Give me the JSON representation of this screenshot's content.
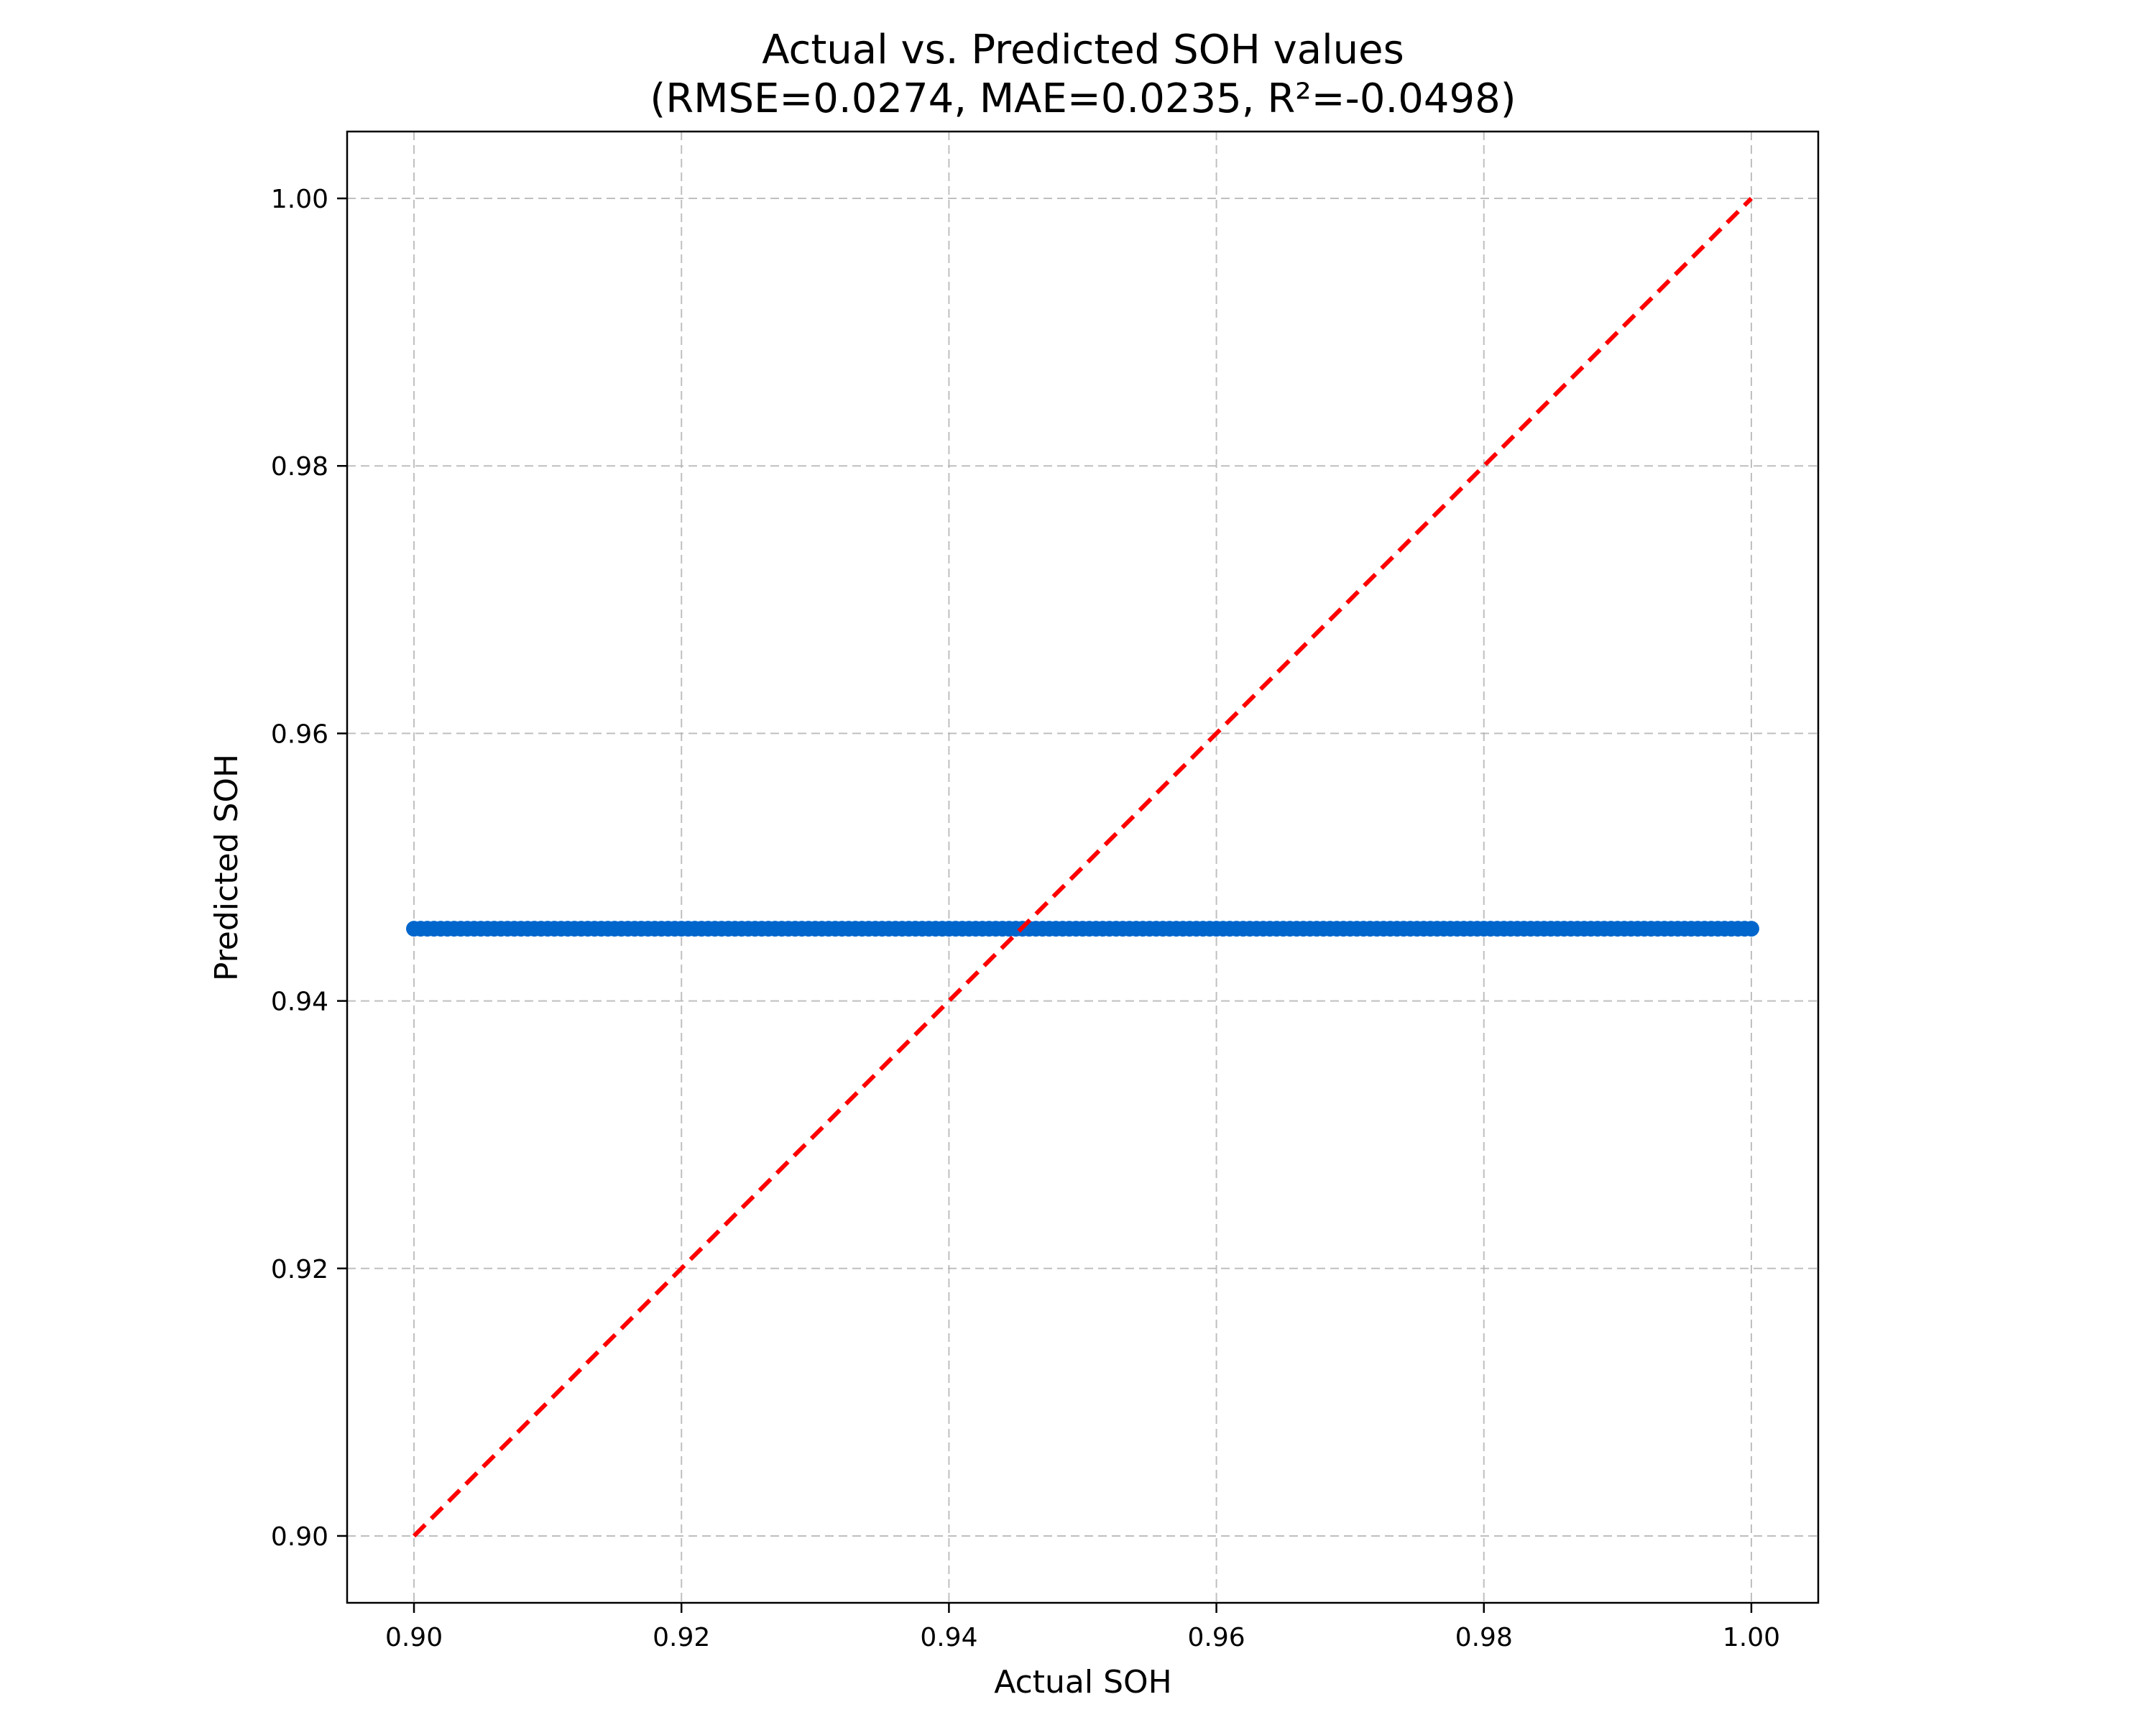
{
  "chart_data": {
    "type": "scatter",
    "title": "Actual vs. Predicted SOH values",
    "subtitle": "(RMSE=0.0274, MAE=0.0235,  R²=-0.0498)",
    "xlabel": "Actual SOH",
    "ylabel": "Predicted SOH",
    "xlim": [
      0.895,
      1.005
    ],
    "ylim": [
      0.895,
      1.005
    ],
    "x_ticks": [
      "0.90",
      "0.92",
      "0.94",
      "0.96",
      "0.98",
      "1.00"
    ],
    "y_ticks": [
      "0.90",
      "0.92",
      "0.94",
      "0.96",
      "0.98",
      "1.00"
    ],
    "x_tick_values": [
      0.9,
      0.92,
      0.94,
      0.96,
      0.98,
      1.0
    ],
    "y_tick_values": [
      0.9,
      0.92,
      0.94,
      0.96,
      0.98,
      1.0
    ],
    "grid": true,
    "scatter": {
      "color": "#0066cc",
      "x_start": 0.9,
      "x_end": 1.0,
      "y": 0.9454,
      "count": 201
    },
    "reference_line": {
      "color": "#ff0000",
      "style": "dashed",
      "x": [
        0.9,
        1.0
      ],
      "y": [
        0.9,
        1.0
      ]
    }
  }
}
